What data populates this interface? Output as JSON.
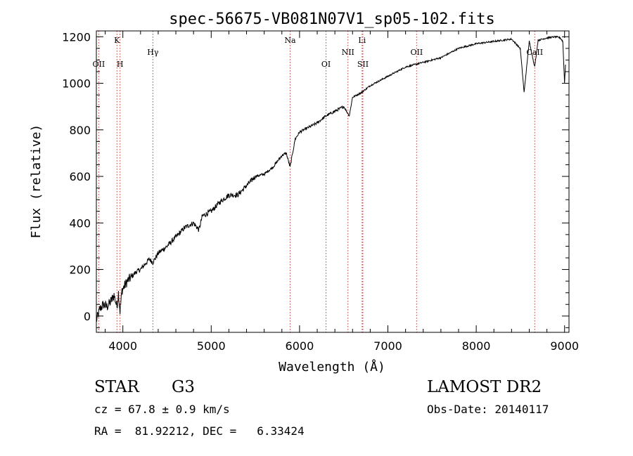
{
  "chart_data": {
    "type": "line",
    "title": "spec-56675-VB081N07V1_sp05-102.fits",
    "xlabel": "Wavelength (Å)",
    "ylabel": "Flux (relative)",
    "xlim": [
      3700,
      9050
    ],
    "ylim": [
      -70,
      1225
    ],
    "x_ticks": [
      4000,
      5000,
      6000,
      7000,
      8000,
      9000
    ],
    "y_ticks": [
      0,
      200,
      400,
      600,
      800,
      1000,
      1200
    ],
    "grid": false,
    "series": [
      {
        "x": [
          3700,
          3740,
          3780,
          3820,
          3860,
          3900,
          3933,
          3950,
          3968,
          3990,
          4050,
          4102,
          4150,
          4200,
          4300,
          4340,
          4400,
          4500,
          4600,
          4700,
          4800,
          4861,
          4900,
          5000,
          5100,
          5200,
          5300,
          5400,
          5500,
          5600,
          5700,
          5800,
          5850,
          5893,
          5950,
          6000,
          6100,
          6200,
          6300,
          6400,
          6500,
          6563,
          6600,
          6700,
          6800,
          6900,
          7000,
          7100,
          7200,
          7300,
          7400,
          7500,
          7600,
          7700,
          7800,
          7900,
          8000,
          8100,
          8200,
          8300,
          8400,
          8498,
          8542,
          8600,
          8662,
          8700,
          8800,
          8900,
          8950,
          8980,
          9000,
          9010
        ],
        "y": [
          -20,
          30,
          50,
          40,
          60,
          90,
          40,
          100,
          20,
          110,
          150,
          170,
          190,
          200,
          245,
          230,
          270,
          300,
          340,
          380,
          400,
          370,
          430,
          450,
          490,
          520,
          520,
          560,
          600,
          610,
          640,
          690,
          700,
          640,
          760,
          790,
          810,
          830,
          860,
          880,
          900,
          860,
          940,
          960,
          990,
          1010,
          1030,
          1050,
          1070,
          1080,
          1090,
          1100,
          1110,
          1130,
          1150,
          1160,
          1170,
          1175,
          1180,
          1185,
          1190,
          1150,
          960,
          1180,
          1070,
          1185,
          1195,
          1200,
          1195,
          1180,
          1000,
          1080
        ]
      }
    ],
    "line_markers": [
      {
        "label": "OII",
        "x": 3727,
        "row": "low"
      },
      {
        "label": "K",
        "x": 3933,
        "row": "high"
      },
      {
        "label": "H",
        "x": 3968,
        "row": "low"
      },
      {
        "label": "Hγ",
        "x": 4340,
        "row": "mid"
      },
      {
        "label": "Na",
        "x": 5893,
        "row": "high"
      },
      {
        "label": "OI",
        "x": 6300,
        "row": "low"
      },
      {
        "label": "NII",
        "x": 6548,
        "row": "mid"
      },
      {
        "label": "Li",
        "x": 6708,
        "row": "high"
      },
      {
        "label": "SII",
        "x": 6717,
        "row": "low"
      },
      {
        "label": "OII",
        "x": 7325,
        "row": "mid"
      },
      {
        "label": "CaII",
        "x": 8662,
        "row": "mid"
      }
    ]
  },
  "info": {
    "object_class": "STAR",
    "subclass": "G3",
    "survey": "LAMOST DR2",
    "redshift_line": "cz = 67.8 ± 0.9 km/s",
    "obs_date_line": "Obs-Date: 20140117",
    "coords_line": "RA =  81.92212, DEC =   6.33424"
  }
}
